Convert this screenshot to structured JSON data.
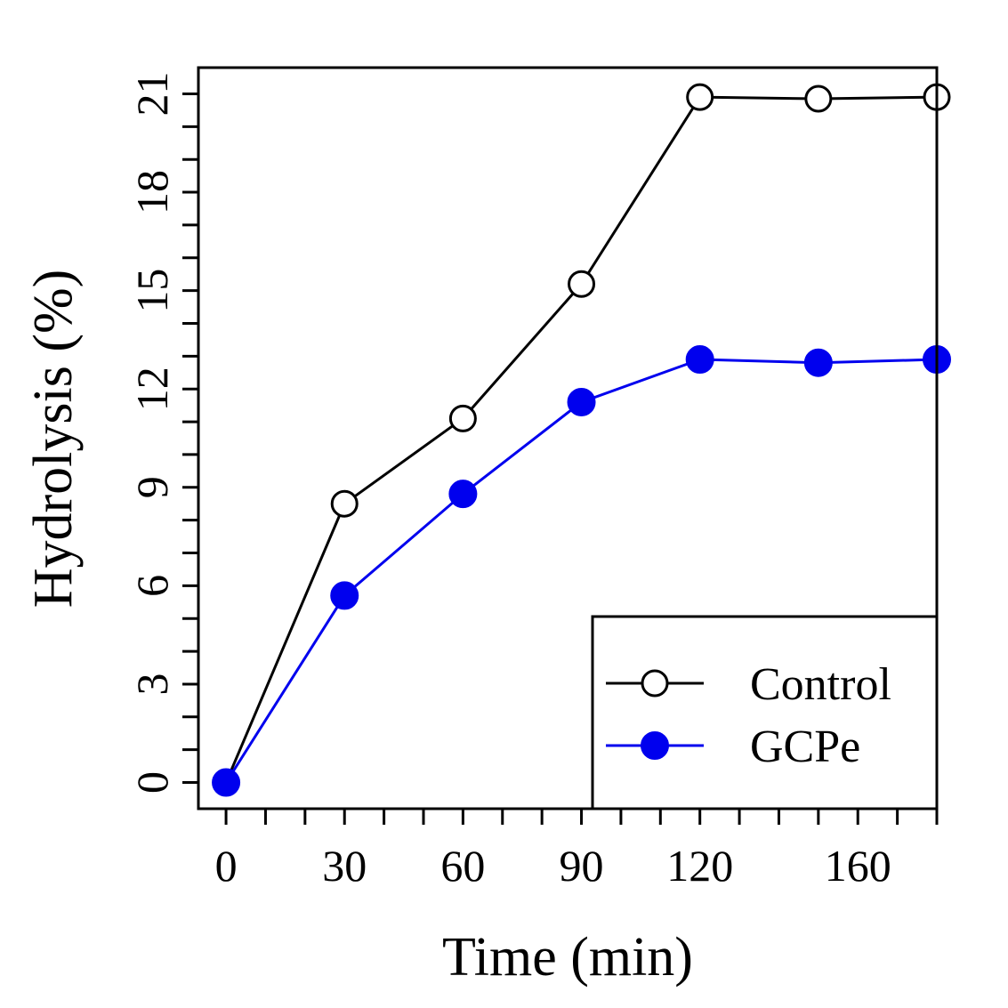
{
  "chart_data": {
    "type": "line",
    "xlabel": "Time (min)",
    "ylabel": "Hydrolysis (%)",
    "xlim": [
      -7,
      180
    ],
    "ylim": [
      -0.8,
      21.8
    ],
    "x_ticks_minor_step": 10,
    "y_ticks_minor_step": 1,
    "x_tick_labels": [
      {
        "value": 0,
        "label": "0"
      },
      {
        "value": 30,
        "label": "30"
      },
      {
        "value": 60,
        "label": "60"
      },
      {
        "value": 90,
        "label": "90"
      },
      {
        "value": 120,
        "label": "120"
      },
      {
        "value": 160,
        "label": "160"
      }
    ],
    "y_tick_labels": [
      {
        "value": 0,
        "label": "0"
      },
      {
        "value": 3,
        "label": "3"
      },
      {
        "value": 6,
        "label": "6"
      },
      {
        "value": 9,
        "label": "9"
      },
      {
        "value": 12,
        "label": "12"
      },
      {
        "value": 15,
        "label": "15"
      },
      {
        "value": 18,
        "label": "18"
      },
      {
        "value": 21,
        "label": "21"
      }
    ],
    "x": [
      0,
      30,
      60,
      90,
      120,
      150,
      180
    ],
    "series": [
      {
        "name": "Control",
        "values": [
          0,
          8.5,
          11.1,
          15.2,
          20.9,
          20.85,
          20.9
        ],
        "color": "#000000",
        "marker": "open-circle"
      },
      {
        "name": "GCPe",
        "values": [
          0,
          5.7,
          8.8,
          11.6,
          12.9,
          12.8,
          12.9
        ],
        "color": "#0000ee",
        "marker": "filled-circle"
      }
    ],
    "legend": {
      "placement": "bottom-right"
    },
    "grid": false
  }
}
